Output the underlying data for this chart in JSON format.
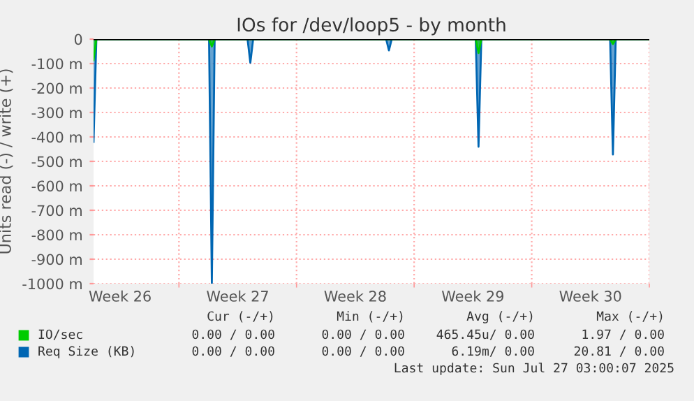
{
  "chart_data": {
    "type": "area",
    "title": "IOs for /dev/loop5 - by month",
    "ylabel": "Units read (-) / write (+)",
    "x": [
      "2025-06-24T22:00",
      "2025-06-25T02:00",
      "2025-07-01T19:00",
      "2025-07-01T23:00",
      "2025-07-02T03:00",
      "2025-07-04T02:00",
      "2025-07-04T06:00",
      "2025-07-04T10:00",
      "2025-07-12T08:00",
      "2025-07-12T12:00",
      "2025-07-12T16:00",
      "2025-07-17T16:00",
      "2025-07-17T20:00",
      "2025-07-18T00:00",
      "2025-07-25T16:00",
      "2025-07-25T20:00",
      "2025-07-26T00:00",
      "2025-07-27T23:00"
    ],
    "series": [
      {
        "name": "Req Size (KB)",
        "color": "#0066b3",
        "values": [
          -420,
          0,
          0,
          -1000,
          0,
          0,
          -97,
          0,
          0,
          -46,
          0,
          0,
          -440,
          0,
          0,
          -472,
          0,
          0
        ]
      },
      {
        "name": "IO/sec",
        "color": "#00cc00",
        "values": [
          -86,
          0,
          0,
          -30,
          0,
          0,
          0,
          0,
          0,
          0,
          0,
          0,
          -57,
          0,
          0,
          -20,
          0,
          0
        ]
      }
    ],
    "xlim": [
      "2025-06-24T22:00",
      "2025-07-28T00:00"
    ],
    "xticks": [
      {
        "value": "2025-06-26T12:00",
        "label": "Week 26"
      },
      {
        "value": "2025-07-03T12:00",
        "label": "Week 27"
      },
      {
        "value": "2025-07-10T12:00",
        "label": "Week 28"
      },
      {
        "value": "2025-07-17T12:00",
        "label": "Week 29"
      },
      {
        "value": "2025-07-24T12:00",
        "label": "Week 30"
      },
      {
        "value": "2025-06-30",
        "label": null
      },
      {
        "value": "2025-07-07",
        "label": null
      },
      {
        "value": "2025-07-14",
        "label": null
      },
      {
        "value": "2025-07-21",
        "label": null
      },
      {
        "value": "2025-07-28",
        "label": null
      }
    ],
    "ylim": [
      -1000,
      0
    ],
    "yticks": [
      {
        "value": -1000,
        "label": "-1000 m"
      },
      {
        "value": -900,
        "label": "-900 m"
      },
      {
        "value": -800,
        "label": "-800 m"
      },
      {
        "value": -700,
        "label": "-700 m"
      },
      {
        "value": -600,
        "label": "-600 m"
      },
      {
        "value": -500,
        "label": "-500 m"
      },
      {
        "value": -400,
        "label": "-400 m"
      },
      {
        "value": -300,
        "label": "-300 m"
      },
      {
        "value": -200,
        "label": "-200 m"
      },
      {
        "value": -100,
        "label": "-100 m"
      },
      0
    ],
    "grid": true,
    "legend": "bottom",
    "annotations": [
      "Cur (-/+)",
      "Min (-/+)",
      "Avg (-/+)",
      "Max (-/+)",
      "0.00 / 0.00",
      "0.00 / 0.00",
      "465.45u/ 0.00",
      "1.97 / 0.00",
      "0.00 / 0.00",
      "0.00 / 0.00",
      "6.19m/ 0.00",
      "20.81 / 0.00",
      "Last update: Sun Jul 27 03:00:07 2025"
    ]
  }
}
